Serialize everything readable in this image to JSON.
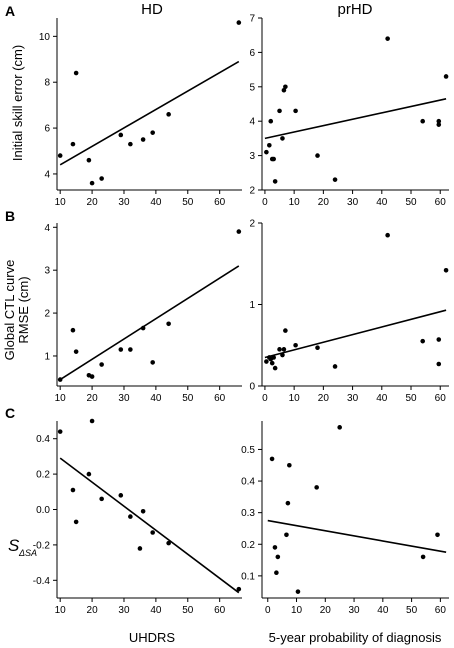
{
  "column_titles": [
    "HD",
    "prHD"
  ],
  "row_labels": [
    "A",
    "B",
    "C"
  ],
  "ylabels": {
    "row0": "Initial skill error (cm)",
    "row1_line1": "Global CTL curve",
    "row1_line2": "RMSE (cm)",
    "row2_main": "S",
    "row2_sub": "ΔSA"
  },
  "xlabels": {
    "left": "UHDRS",
    "right": "5-year probability of diagnosis"
  },
  "chart_data": [
    {
      "type": "scatter",
      "row": 0,
      "col": 0,
      "title": "HD",
      "xlabel": "",
      "ylabel": "Initial skill error (cm)",
      "xlim": [
        9,
        67
      ],
      "ylim": [
        3.3,
        10.8
      ],
      "xticks": [
        10,
        20,
        30,
        40,
        50,
        60
      ],
      "yticks": [
        4,
        6,
        8,
        10
      ],
      "points": [
        [
          10,
          4.8
        ],
        [
          14,
          5.3
        ],
        [
          15,
          8.4
        ],
        [
          19,
          4.6
        ],
        [
          20,
          3.6
        ],
        [
          23,
          3.8
        ],
        [
          29,
          5.7
        ],
        [
          32,
          5.3
        ],
        [
          36,
          5.5
        ],
        [
          39,
          5.8
        ],
        [
          44,
          6.6
        ],
        [
          66,
          10.6
        ]
      ],
      "fit": [
        [
          10,
          4.4
        ],
        [
          66,
          8.9
        ]
      ]
    },
    {
      "type": "scatter",
      "row": 0,
      "col": 1,
      "title": "prHD",
      "xlabel": "",
      "ylabel": "",
      "xlim": [
        -1,
        63
      ],
      "ylim": [
        2,
        7
      ],
      "xticks": [
        0,
        10,
        20,
        30,
        40,
        50,
        60
      ],
      "yticks": [
        2,
        3,
        4,
        5,
        6,
        7
      ],
      "points": [
        [
          0.5,
          3.1
        ],
        [
          1.5,
          3.3
        ],
        [
          2,
          4.0
        ],
        [
          2.5,
          2.9
        ],
        [
          3,
          2.9
        ],
        [
          3.5,
          2.25
        ],
        [
          5,
          4.3
        ],
        [
          6,
          3.5
        ],
        [
          6.5,
          4.9
        ],
        [
          7,
          5.0
        ],
        [
          10.5,
          4.3
        ],
        [
          18,
          3.0
        ],
        [
          24,
          2.3
        ],
        [
          42,
          6.4
        ],
        [
          54,
          4.0
        ],
        [
          59.5,
          3.9
        ],
        [
          59.5,
          4.0
        ],
        [
          62,
          5.3
        ]
      ],
      "fit": [
        [
          0,
          3.5
        ],
        [
          62,
          4.65
        ]
      ]
    },
    {
      "type": "scatter",
      "row": 1,
      "col": 0,
      "title": "",
      "xlabel": "",
      "ylabel": "Global CTL curve RMSE (cm)",
      "xlim": [
        9,
        67
      ],
      "ylim": [
        0.3,
        4.1
      ],
      "xticks": [
        10,
        20,
        30,
        40,
        50,
        60
      ],
      "yticks": [
        1,
        2,
        3,
        4
      ],
      "points": [
        [
          10,
          0.45
        ],
        [
          14,
          1.6
        ],
        [
          15,
          1.1
        ],
        [
          19,
          0.55
        ],
        [
          20,
          0.52
        ],
        [
          23,
          0.8
        ],
        [
          29,
          1.15
        ],
        [
          32,
          1.15
        ],
        [
          36,
          1.65
        ],
        [
          39,
          0.85
        ],
        [
          44,
          1.75
        ],
        [
          66,
          3.9
        ]
      ],
      "fit": [
        [
          10,
          0.45
        ],
        [
          66,
          3.1
        ]
      ]
    },
    {
      "type": "scatter",
      "row": 1,
      "col": 1,
      "title": "",
      "xlabel": "",
      "ylabel": "",
      "xlim": [
        -1,
        63
      ],
      "ylim": [
        0,
        2
      ],
      "xticks": [
        0,
        10,
        20,
        30,
        40,
        50,
        60
      ],
      "yticks": [
        0,
        1,
        2
      ],
      "points": [
        [
          0.5,
          0.3
        ],
        [
          1.5,
          0.35
        ],
        [
          2,
          0.33
        ],
        [
          2.5,
          0.28
        ],
        [
          3,
          0.35
        ],
        [
          3.5,
          0.22
        ],
        [
          5,
          0.45
        ],
        [
          6,
          0.38
        ],
        [
          6.5,
          0.45
        ],
        [
          7,
          0.68
        ],
        [
          10.5,
          0.5
        ],
        [
          18,
          0.47
        ],
        [
          24,
          0.24
        ],
        [
          42,
          1.85
        ],
        [
          54,
          0.55
        ],
        [
          59.5,
          0.27
        ],
        [
          59.5,
          0.57
        ],
        [
          62,
          1.42
        ]
      ],
      "fit": [
        [
          0,
          0.35
        ],
        [
          62,
          0.93
        ]
      ]
    },
    {
      "type": "scatter",
      "row": 2,
      "col": 0,
      "title": "",
      "xlabel": "UHDRS",
      "ylabel": "S ΔSA",
      "xlim": [
        9,
        67
      ],
      "ylim": [
        -0.5,
        0.5
      ],
      "xticks": [
        10,
        20,
        30,
        40,
        50,
        60
      ],
      "yticks": [
        -0.4,
        -0.2,
        0.0,
        0.2,
        0.4
      ],
      "yticklabels": [
        "-0.4",
        "-0.2",
        "0.0",
        "0.2",
        "0.4"
      ],
      "points": [
        [
          10,
          0.44
        ],
        [
          14,
          0.11
        ],
        [
          15,
          -0.07
        ],
        [
          19,
          0.2
        ],
        [
          20,
          0.5
        ],
        [
          23,
          0.06
        ],
        [
          29,
          0.08
        ],
        [
          32,
          -0.04
        ],
        [
          35,
          -0.22
        ],
        [
          36,
          -0.01
        ],
        [
          39,
          -0.13
        ],
        [
          44,
          -0.19
        ],
        [
          66,
          -0.45
        ]
      ],
      "fit": [
        [
          10,
          0.29
        ],
        [
          66,
          -0.47
        ]
      ]
    },
    {
      "type": "scatter",
      "row": 2,
      "col": 1,
      "title": "",
      "xlabel": "5-year probability of diagnosis",
      "ylabel": "",
      "xlim": [
        -2,
        63
      ],
      "ylim": [
        0.03,
        0.59
      ],
      "xticks": [
        0,
        10,
        20,
        30,
        40,
        50,
        60
      ],
      "yticks": [
        0.1,
        0.2,
        0.3,
        0.4,
        0.5
      ],
      "points": [
        [
          1.5,
          0.47
        ],
        [
          2.5,
          0.19
        ],
        [
          3,
          0.11
        ],
        [
          3.5,
          0.16
        ],
        [
          6.5,
          0.23
        ],
        [
          7,
          0.33
        ],
        [
          7.5,
          0.45
        ],
        [
          10.5,
          0.05
        ],
        [
          17,
          0.38
        ],
        [
          25,
          0.57
        ],
        [
          54,
          0.16
        ],
        [
          59,
          0.23
        ]
      ],
      "fit": [
        [
          0,
          0.275
        ],
        [
          62,
          0.175
        ]
      ]
    }
  ]
}
